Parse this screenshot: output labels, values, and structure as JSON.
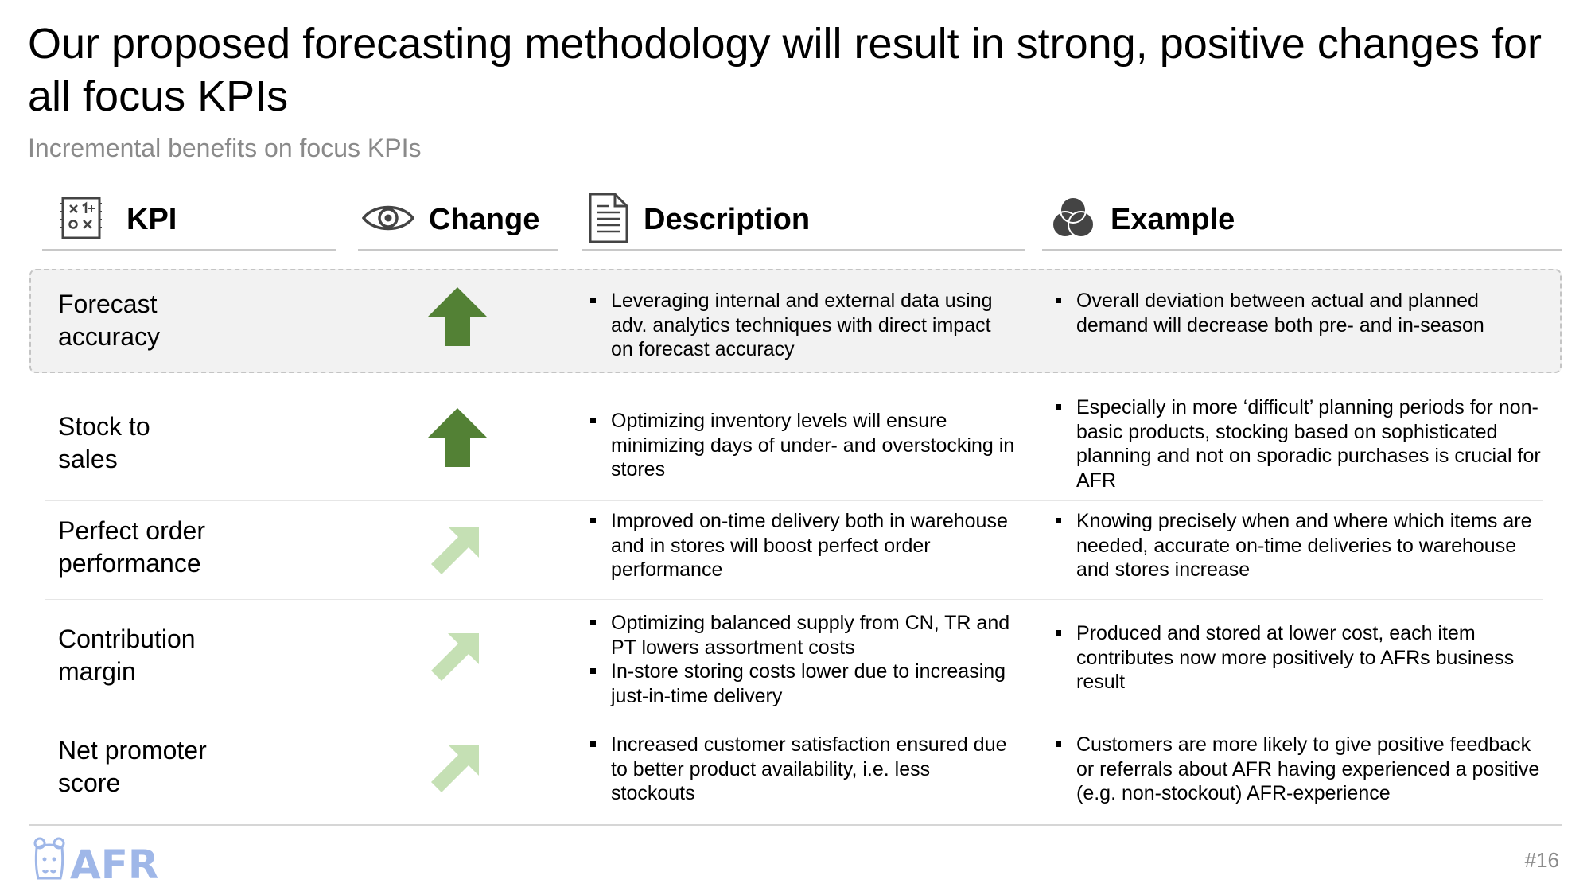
{
  "slide": {
    "title": "Our proposed forecasting methodology will result in strong, positive changes for all focus KPIs",
    "subtitle": "Incremental benefits on focus KPIs",
    "page_number": "#16",
    "logo_text": "AFR"
  },
  "headers": {
    "kpi": {
      "label": "KPI",
      "icon": "formula-board-icon"
    },
    "change": {
      "label": "Change",
      "icon": "eye-icon"
    },
    "description": {
      "label": "Description",
      "icon": "document-icon"
    },
    "example": {
      "label": "Example",
      "icon": "venn-circles-icon"
    }
  },
  "colors": {
    "arrow_strong": "#538135",
    "arrow_light": "#c5e0b4",
    "highlight_bg": "#f2f2f2",
    "subtitle": "#8a8a8a"
  },
  "rows": [
    {
      "kpi": [
        "Forecast",
        "accuracy"
      ],
      "change": "strong-increase",
      "highlighted": true,
      "description": [
        "Leveraging internal and external data using adv. analytics techniques with direct impact on forecast accuracy"
      ],
      "example": [
        "Overall deviation between actual and planned demand will decrease both pre- and in-season"
      ]
    },
    {
      "kpi": [
        "Stock to",
        "sales"
      ],
      "change": "strong-increase",
      "highlighted": false,
      "description": [
        "Optimizing inventory levels will ensure minimizing days of under- and overstocking in stores"
      ],
      "example": [
        "Especially in more ‘difficult’ planning periods for non-basic products, stocking based on sophisticated planning and not on sporadic purchases is crucial for AFR"
      ]
    },
    {
      "kpi": [
        "Perfect order",
        "performance"
      ],
      "change": "moderate-increase",
      "highlighted": false,
      "description": [
        "Improved on-time delivery both in warehouse and in stores will boost perfect order performance"
      ],
      "example": [
        "Knowing precisely when and where which items are needed, accurate on-time deliveries to warehouse and stores increase"
      ]
    },
    {
      "kpi": [
        "Contribution",
        "margin"
      ],
      "change": "moderate-increase",
      "highlighted": false,
      "description": [
        "Optimizing balanced supply from CN, TR and PT lowers assortment costs",
        "In-store storing costs lower due to increasing just-in-time delivery"
      ],
      "example": [
        "Produced and stored at lower cost, each item contributes now more positively to AFRs business result"
      ]
    },
    {
      "kpi": [
        "Net promoter",
        "score"
      ],
      "change": "moderate-increase",
      "highlighted": false,
      "description": [
        "Increased customer satisfaction ensured due to better product availability, i.e. less stockouts"
      ],
      "example": [
        "Customers are more likely to give positive feedback or referrals about AFR having experienced a positive (e.g. non-stockout) AFR-experience"
      ]
    }
  ]
}
